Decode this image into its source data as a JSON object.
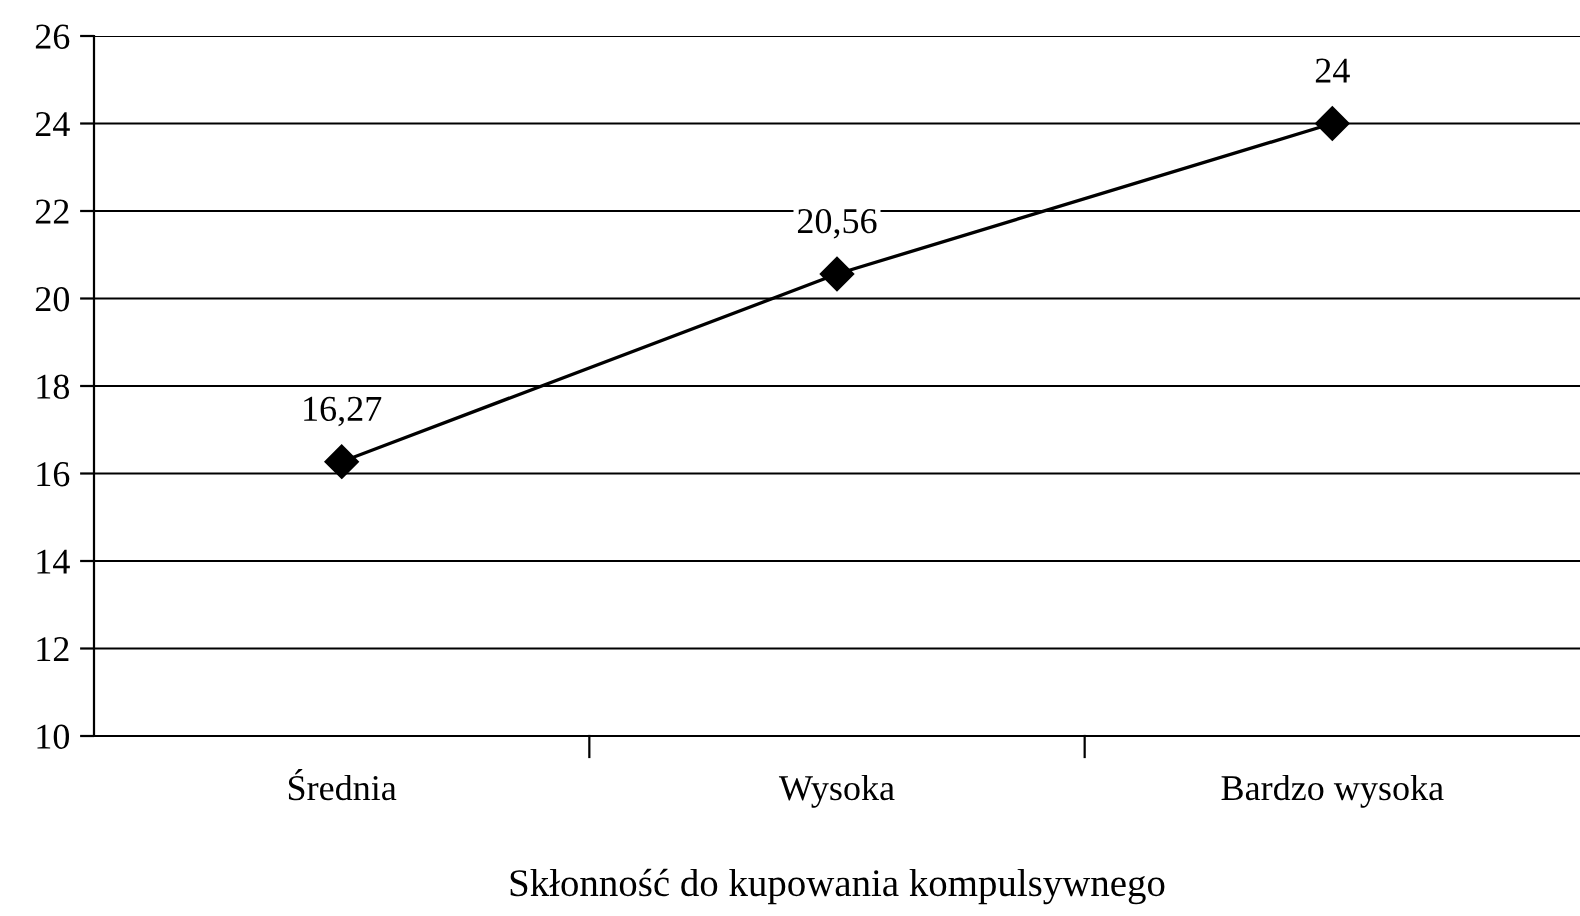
{
  "chart_data": {
    "type": "line",
    "xlabel": "Skłonność do kupowania kompulsywnego",
    "categories": [
      "Średnia",
      "Wysoka",
      "Bardzo wysoka"
    ],
    "values": [
      16.27,
      20.56,
      24
    ],
    "value_labels": [
      "16,27",
      "20,56",
      "24"
    ],
    "color": "#000000",
    "marker": "diamond",
    "line_style": "solid",
    "ylim": [
      10,
      26
    ],
    "yticks": [
      10,
      12,
      14,
      16,
      18,
      20,
      22,
      24,
      26
    ],
    "grid": "y",
    "legend": false
  }
}
